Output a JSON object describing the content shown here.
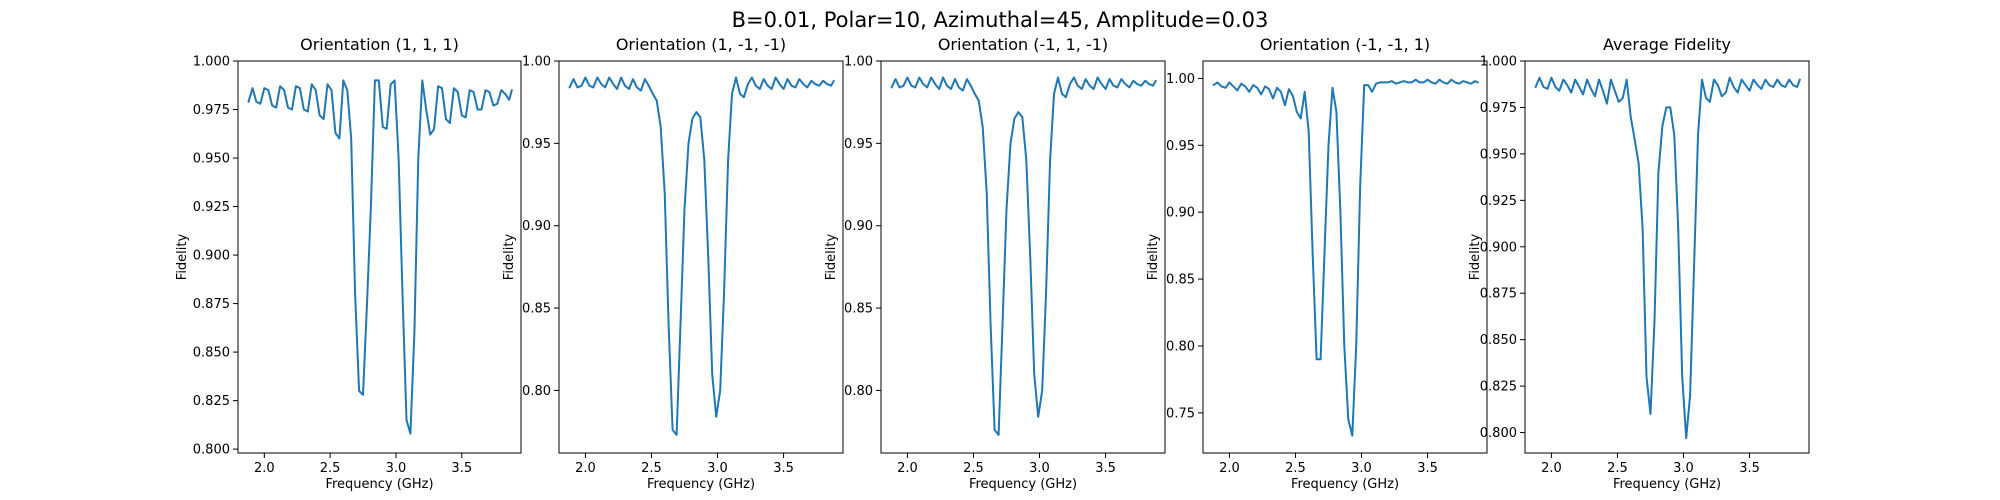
{
  "figure": {
    "suptitle": "B=0.01, Polar=10, Azimuthal=45, Amplitude=0.03"
  },
  "colors": {
    "line": "#1f77b4"
  },
  "chart_data": [
    {
      "type": "line",
      "title": "Orientation (1, 1, 1)",
      "xlabel": "Frequency (GHz)",
      "ylabel": "Fidelity",
      "xlim": [
        1.8,
        3.95
      ],
      "ylim": [
        0.798,
        1.0
      ],
      "xticks": [
        2.0,
        2.5,
        3.0,
        3.5
      ],
      "xtick_labels": [
        "2.0",
        "2.5",
        "3.0",
        "3.5"
      ],
      "yticks": [
        0.8,
        0.825,
        0.85,
        0.875,
        0.9,
        0.925,
        0.95,
        0.975,
        1.0
      ],
      "ytick_labels": [
        "0.800",
        "0.825",
        "0.850",
        "0.875",
        "0.900",
        "0.925",
        "0.950",
        "0.975",
        "1.000"
      ],
      "grid": false,
      "series": [
        {
          "x": [
            1.88,
            1.91,
            1.94,
            1.97,
            2.0,
            2.03,
            2.06,
            2.09,
            2.12,
            2.15,
            2.18,
            2.21,
            2.24,
            2.27,
            2.3,
            2.33,
            2.36,
            2.39,
            2.42,
            2.45,
            2.48,
            2.51,
            2.54,
            2.57,
            2.6,
            2.63,
            2.66,
            2.69,
            2.72,
            2.75,
            2.78,
            2.81,
            2.84,
            2.87,
            2.9,
            2.93,
            2.96,
            2.99,
            3.02,
            3.05,
            3.08,
            3.11,
            3.14,
            3.17,
            3.2,
            3.23,
            3.26,
            3.29,
            3.32,
            3.35,
            3.38,
            3.41,
            3.44,
            3.47,
            3.5,
            3.53,
            3.56,
            3.59,
            3.62,
            3.65,
            3.68,
            3.71,
            3.74,
            3.77,
            3.8,
            3.83,
            3.86,
            3.88
          ],
          "y": [
            0.979,
            0.986,
            0.979,
            0.978,
            0.986,
            0.985,
            0.977,
            0.976,
            0.987,
            0.985,
            0.976,
            0.975,
            0.987,
            0.986,
            0.975,
            0.974,
            0.988,
            0.985,
            0.972,
            0.97,
            0.988,
            0.985,
            0.963,
            0.96,
            0.99,
            0.985,
            0.96,
            0.88,
            0.83,
            0.828,
            0.875,
            0.925,
            0.99,
            0.99,
            0.966,
            0.965,
            0.988,
            0.99,
            0.95,
            0.88,
            0.815,
            0.808,
            0.86,
            0.95,
            0.99,
            0.975,
            0.962,
            0.965,
            0.987,
            0.986,
            0.97,
            0.968,
            0.986,
            0.984,
            0.972,
            0.971,
            0.985,
            0.984,
            0.975,
            0.975,
            0.985,
            0.984,
            0.977,
            0.978,
            0.985,
            0.983,
            0.98,
            0.985
          ]
        }
      ]
    },
    {
      "type": "line",
      "title": "Orientation (1, -1, -1)",
      "xlabel": "Frequency (GHz)",
      "ylabel": "Fidelity",
      "xlim": [
        1.8,
        3.95
      ],
      "ylim": [
        0.762,
        1.0
      ],
      "xticks": [
        2.0,
        2.5,
        3.0,
        3.5
      ],
      "xtick_labels": [
        "2.0",
        "2.5",
        "3.0",
        "3.5"
      ],
      "yticks": [
        0.8,
        0.85,
        0.9,
        0.95,
        1.0
      ],
      "ytick_labels": [
        "0.80",
        "0.85",
        "0.90",
        "0.95",
        "1.00"
      ],
      "grid": false,
      "series": [
        {
          "x": [
            1.88,
            1.91,
            1.94,
            1.97,
            2.0,
            2.03,
            2.06,
            2.09,
            2.12,
            2.15,
            2.18,
            2.21,
            2.24,
            2.27,
            2.3,
            2.33,
            2.36,
            2.39,
            2.42,
            2.45,
            2.48,
            2.51,
            2.54,
            2.57,
            2.6,
            2.63,
            2.66,
            2.69,
            2.72,
            2.75,
            2.78,
            2.81,
            2.84,
            2.87,
            2.9,
            2.93,
            2.96,
            2.99,
            3.02,
            3.05,
            3.08,
            3.11,
            3.14,
            3.17,
            3.2,
            3.23,
            3.26,
            3.29,
            3.32,
            3.35,
            3.38,
            3.41,
            3.44,
            3.47,
            3.5,
            3.53,
            3.56,
            3.59,
            3.62,
            3.65,
            3.68,
            3.71,
            3.74,
            3.77,
            3.8,
            3.83,
            3.86,
            3.88
          ],
          "y": [
            0.984,
            0.989,
            0.984,
            0.985,
            0.99,
            0.985,
            0.984,
            0.99,
            0.986,
            0.984,
            0.99,
            0.986,
            0.983,
            0.99,
            0.985,
            0.983,
            0.989,
            0.984,
            0.982,
            0.989,
            0.985,
            0.98,
            0.976,
            0.96,
            0.92,
            0.84,
            0.776,
            0.773,
            0.84,
            0.91,
            0.95,
            0.965,
            0.969,
            0.966,
            0.94,
            0.88,
            0.81,
            0.784,
            0.8,
            0.86,
            0.94,
            0.98,
            0.99,
            0.98,
            0.978,
            0.986,
            0.99,
            0.985,
            0.983,
            0.989,
            0.985,
            0.983,
            0.99,
            0.986,
            0.983,
            0.989,
            0.985,
            0.984,
            0.989,
            0.986,
            0.984,
            0.988,
            0.986,
            0.985,
            0.988,
            0.986,
            0.985,
            0.988
          ]
        }
      ]
    },
    {
      "type": "line",
      "title": "Orientation (-1, 1, -1)",
      "xlabel": "Frequency (GHz)",
      "ylabel": "Fidelity",
      "xlim": [
        1.8,
        3.95
      ],
      "ylim": [
        0.762,
        1.0
      ],
      "xticks": [
        2.0,
        2.5,
        3.0,
        3.5
      ],
      "xtick_labels": [
        "2.0",
        "2.5",
        "3.0",
        "3.5"
      ],
      "yticks": [
        0.8,
        0.85,
        0.9,
        0.95,
        1.0
      ],
      "ytick_labels": [
        "0.80",
        "0.85",
        "0.90",
        "0.95",
        "1.00"
      ],
      "grid": false,
      "series": [
        {
          "x": [
            1.88,
            1.91,
            1.94,
            1.97,
            2.0,
            2.03,
            2.06,
            2.09,
            2.12,
            2.15,
            2.18,
            2.21,
            2.24,
            2.27,
            2.3,
            2.33,
            2.36,
            2.39,
            2.42,
            2.45,
            2.48,
            2.51,
            2.54,
            2.57,
            2.6,
            2.63,
            2.66,
            2.69,
            2.72,
            2.75,
            2.78,
            2.81,
            2.84,
            2.87,
            2.9,
            2.93,
            2.96,
            2.99,
            3.02,
            3.05,
            3.08,
            3.11,
            3.14,
            3.17,
            3.2,
            3.23,
            3.26,
            3.29,
            3.32,
            3.35,
            3.38,
            3.41,
            3.44,
            3.47,
            3.5,
            3.53,
            3.56,
            3.59,
            3.62,
            3.65,
            3.68,
            3.71,
            3.74,
            3.77,
            3.8,
            3.83,
            3.86,
            3.88
          ],
          "y": [
            0.984,
            0.989,
            0.984,
            0.985,
            0.99,
            0.985,
            0.984,
            0.99,
            0.986,
            0.984,
            0.99,
            0.986,
            0.983,
            0.99,
            0.985,
            0.983,
            0.989,
            0.984,
            0.982,
            0.989,
            0.985,
            0.98,
            0.976,
            0.96,
            0.92,
            0.84,
            0.776,
            0.773,
            0.84,
            0.91,
            0.95,
            0.965,
            0.969,
            0.966,
            0.94,
            0.88,
            0.81,
            0.784,
            0.8,
            0.86,
            0.94,
            0.98,
            0.99,
            0.98,
            0.978,
            0.986,
            0.99,
            0.985,
            0.983,
            0.989,
            0.985,
            0.983,
            0.99,
            0.986,
            0.983,
            0.989,
            0.985,
            0.984,
            0.989,
            0.986,
            0.984,
            0.988,
            0.986,
            0.985,
            0.988,
            0.986,
            0.985,
            0.988
          ]
        }
      ]
    },
    {
      "type": "line",
      "title": "Orientation (-1, -1, 1)",
      "xlabel": "Frequency (GHz)",
      "ylabel": "Fidelity",
      "xlim": [
        1.8,
        3.95
      ],
      "ylim": [
        0.72,
        1.013
      ],
      "xticks": [
        2.0,
        2.5,
        3.0,
        3.5
      ],
      "xtick_labels": [
        "2.0",
        "2.5",
        "3.0",
        "3.5"
      ],
      "yticks": [
        0.75,
        0.8,
        0.85,
        0.9,
        0.95,
        1.0
      ],
      "ytick_labels": [
        "0.75",
        "0.80",
        "0.85",
        "0.90",
        "0.95",
        "1.00"
      ],
      "grid": false,
      "series": [
        {
          "x": [
            1.88,
            1.91,
            1.94,
            1.97,
            2.0,
            2.03,
            2.06,
            2.09,
            2.12,
            2.15,
            2.18,
            2.21,
            2.24,
            2.27,
            2.3,
            2.33,
            2.36,
            2.39,
            2.42,
            2.45,
            2.48,
            2.51,
            2.54,
            2.57,
            2.6,
            2.63,
            2.66,
            2.69,
            2.72,
            2.75,
            2.78,
            2.81,
            2.84,
            2.87,
            2.9,
            2.93,
            2.96,
            2.99,
            3.02,
            3.05,
            3.08,
            3.11,
            3.14,
            3.17,
            3.2,
            3.23,
            3.26,
            3.29,
            3.32,
            3.35,
            3.38,
            3.41,
            3.44,
            3.47,
            3.5,
            3.53,
            3.56,
            3.59,
            3.62,
            3.65,
            3.68,
            3.71,
            3.74,
            3.77,
            3.8,
            3.83,
            3.86,
            3.88
          ],
          "y": [
            0.995,
            0.997,
            0.994,
            0.993,
            0.997,
            0.994,
            0.991,
            0.996,
            0.994,
            0.99,
            0.995,
            0.993,
            0.988,
            0.994,
            0.992,
            0.985,
            0.993,
            0.99,
            0.98,
            0.992,
            0.987,
            0.975,
            0.97,
            0.99,
            0.96,
            0.87,
            0.79,
            0.79,
            0.87,
            0.95,
            0.993,
            0.975,
            0.9,
            0.8,
            0.745,
            0.733,
            0.8,
            0.92,
            0.995,
            0.995,
            0.99,
            0.996,
            0.997,
            0.997,
            0.997,
            0.998,
            0.996,
            0.997,
            0.998,
            0.997,
            0.997,
            0.999,
            0.997,
            0.997,
            0.999,
            0.997,
            0.996,
            0.999,
            0.997,
            0.996,
            0.999,
            0.997,
            0.996,
            0.998,
            0.997,
            0.996,
            0.998,
            0.997
          ]
        }
      ]
    },
    {
      "type": "line",
      "title": "Average Fidelity",
      "xlabel": "Frequency (GHz)",
      "ylabel": "Fidelity",
      "xlim": [
        1.8,
        3.95
      ],
      "ylim": [
        0.789,
        1.0
      ],
      "xticks": [
        2.0,
        2.5,
        3.0,
        3.5
      ],
      "xtick_labels": [
        "2.0",
        "2.5",
        "3.0",
        "3.5"
      ],
      "yticks": [
        0.8,
        0.825,
        0.85,
        0.875,
        0.9,
        0.925,
        0.95,
        0.975,
        1.0
      ],
      "ytick_labels": [
        "0.800",
        "0.825",
        "0.850",
        "0.875",
        "0.900",
        "0.925",
        "0.950",
        "0.975",
        "1.000"
      ],
      "grid": false,
      "series": [
        {
          "x": [
            1.88,
            1.91,
            1.94,
            1.97,
            2.0,
            2.03,
            2.06,
            2.09,
            2.12,
            2.15,
            2.18,
            2.21,
            2.24,
            2.27,
            2.3,
            2.33,
            2.36,
            2.39,
            2.42,
            2.45,
            2.48,
            2.51,
            2.54,
            2.57,
            2.6,
            2.63,
            2.66,
            2.69,
            2.72,
            2.75,
            2.78,
            2.81,
            2.84,
            2.87,
            2.9,
            2.93,
            2.96,
            2.99,
            3.02,
            3.05,
            3.08,
            3.11,
            3.14,
            3.17,
            3.2,
            3.23,
            3.26,
            3.29,
            3.32,
            3.35,
            3.38,
            3.41,
            3.44,
            3.47,
            3.5,
            3.53,
            3.56,
            3.59,
            3.62,
            3.65,
            3.68,
            3.71,
            3.74,
            3.77,
            3.8,
            3.83,
            3.86,
            3.88
          ],
          "y": [
            0.986,
            0.991,
            0.986,
            0.985,
            0.991,
            0.986,
            0.984,
            0.99,
            0.987,
            0.983,
            0.99,
            0.986,
            0.982,
            0.99,
            0.985,
            0.981,
            0.99,
            0.984,
            0.977,
            0.99,
            0.984,
            0.978,
            0.98,
            0.99,
            0.97,
            0.958,
            0.945,
            0.91,
            0.83,
            0.81,
            0.86,
            0.94,
            0.965,
            0.975,
            0.975,
            0.96,
            0.91,
            0.83,
            0.797,
            0.82,
            0.89,
            0.96,
            0.99,
            0.98,
            0.978,
            0.99,
            0.987,
            0.981,
            0.983,
            0.991,
            0.986,
            0.983,
            0.99,
            0.987,
            0.984,
            0.99,
            0.987,
            0.985,
            0.99,
            0.987,
            0.986,
            0.99,
            0.987,
            0.986,
            0.99,
            0.987,
            0.986,
            0.99
          ]
        }
      ]
    }
  ]
}
